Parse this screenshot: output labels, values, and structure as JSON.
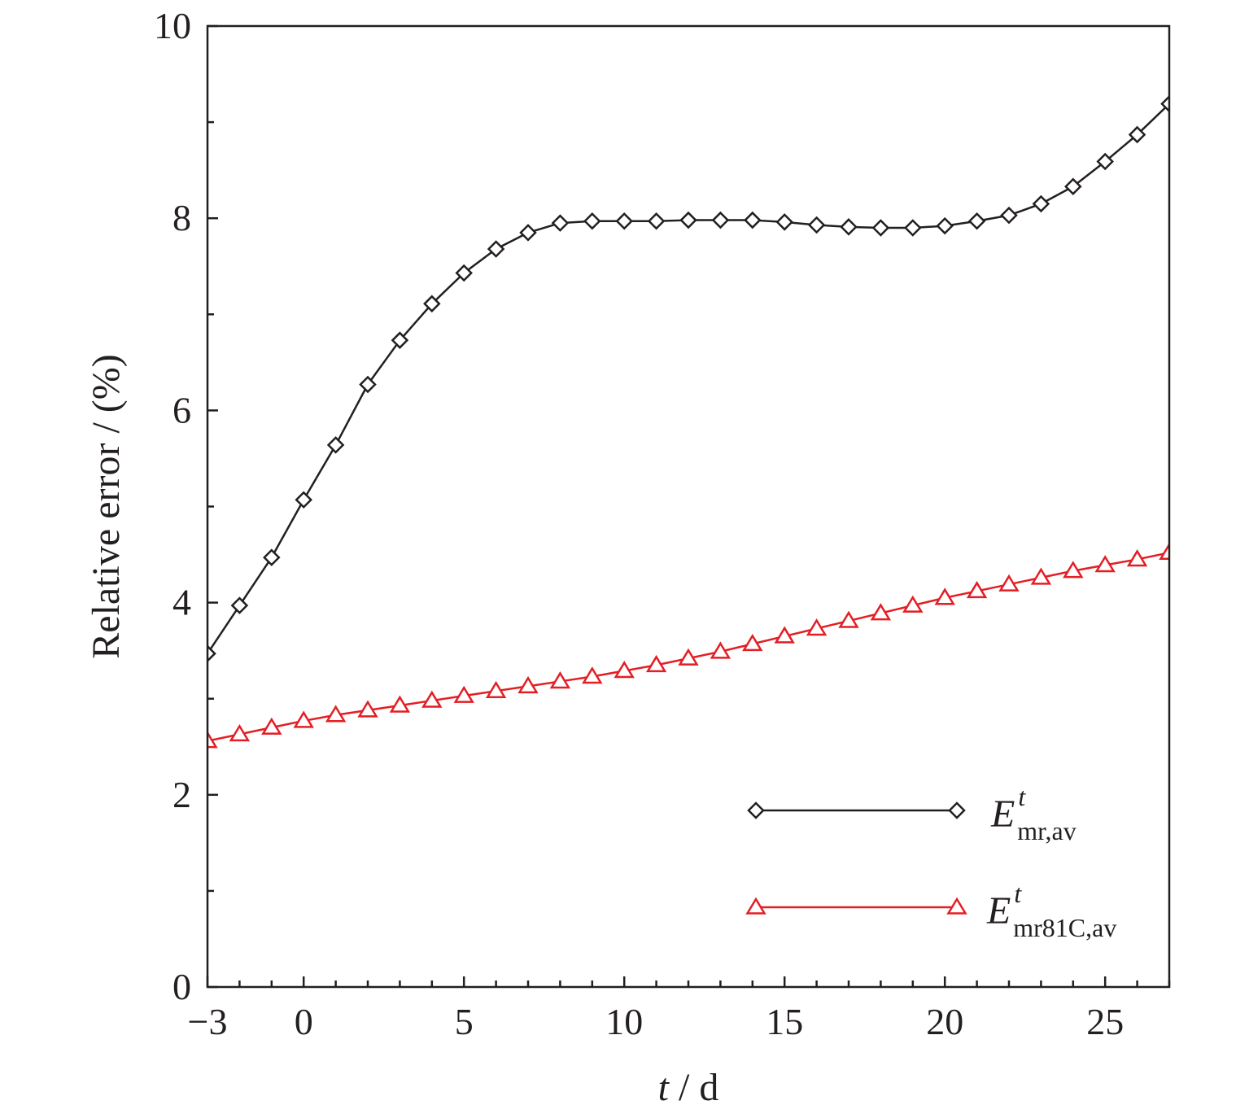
{
  "chart_data": {
    "type": "line",
    "xlabel": {
      "var": "t",
      "unit": " / d"
    },
    "ylabel": "Relative error / (%)",
    "xlim": [
      -3,
      27
    ],
    "ylim": [
      0,
      10
    ],
    "x_ticks": [
      -3,
      0,
      5,
      10,
      15,
      20,
      25
    ],
    "x_tick_labels": [
      "−3",
      "0",
      "5",
      "10",
      "15",
      "20",
      "25"
    ],
    "x_minor_step": 1,
    "y_ticks": [
      0,
      2,
      4,
      6,
      8,
      10
    ],
    "y_tick_labels": [
      "0",
      "2",
      "4",
      "6",
      "8",
      "10"
    ],
    "y_minor_step": 1,
    "grid": false,
    "legend_position": "bottom-right",
    "x": [
      -3,
      -2,
      -1,
      0,
      1,
      2,
      3,
      4,
      5,
      6,
      7,
      8,
      9,
      10,
      11,
      12,
      13,
      14,
      15,
      16,
      17,
      18,
      19,
      20,
      21,
      22,
      23,
      24,
      25,
      26,
      27
    ],
    "series": [
      {
        "legend": {
          "main": "E",
          "sup": "t",
          "sub": "mr,av"
        },
        "color": "#231f20",
        "marker": "diamond",
        "values": [
          3.47,
          3.97,
          4.47,
          5.07,
          5.64,
          6.27,
          6.73,
          7.11,
          7.43,
          7.68,
          7.85,
          7.95,
          7.97,
          7.97,
          7.97,
          7.98,
          7.98,
          7.98,
          7.96,
          7.93,
          7.91,
          7.9,
          7.9,
          7.92,
          7.97,
          8.03,
          8.15,
          8.33,
          8.59,
          8.87,
          9.19
        ]
      },
      {
        "legend": {
          "main": "E",
          "sup": "t",
          "sub": "mr81C,av"
        },
        "color": "#e31e24",
        "marker": "triangle",
        "values": [
          2.56,
          2.63,
          2.7,
          2.77,
          2.83,
          2.88,
          2.93,
          2.98,
          3.03,
          3.08,
          3.13,
          3.18,
          3.23,
          3.29,
          3.35,
          3.42,
          3.49,
          3.57,
          3.65,
          3.73,
          3.81,
          3.89,
          3.97,
          4.05,
          4.12,
          4.19,
          4.26,
          4.33,
          4.39,
          4.45,
          4.52
        ]
      }
    ]
  }
}
